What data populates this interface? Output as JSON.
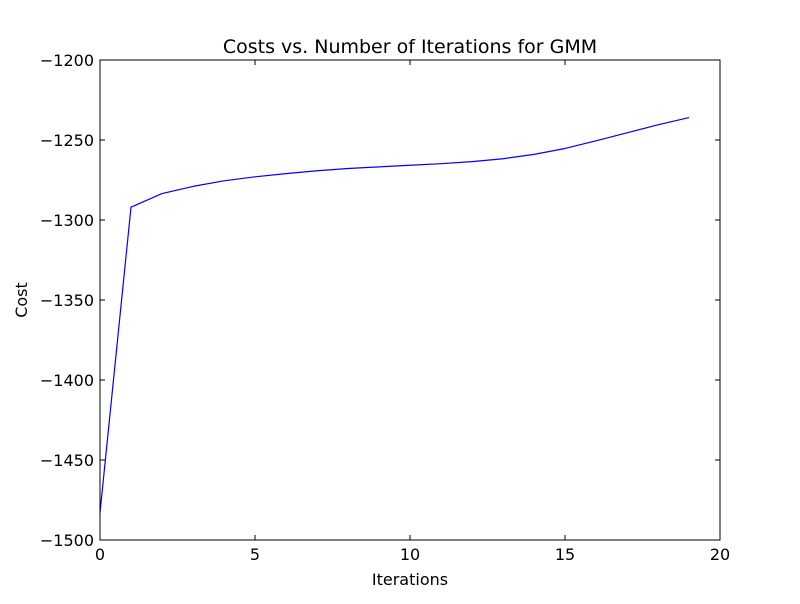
{
  "chart_data": {
    "type": "line",
    "title": "Costs vs. Number of Iterations for GMM",
    "xlabel": "Iterations",
    "ylabel": "Cost",
    "xlim": [
      0,
      20
    ],
    "ylim": [
      -1500,
      -1200
    ],
    "xticks": [
      "0",
      "5",
      "10",
      "15",
      "20"
    ],
    "yticks": [
      "−1500",
      "−1450",
      "−1400",
      "−1350",
      "−1300",
      "−1250",
      "−1200"
    ],
    "grid": false,
    "series": [
      {
        "color": "#0000ff",
        "x": [
          0,
          1,
          2,
          3,
          4,
          5,
          6,
          7,
          8,
          9,
          10,
          11,
          12,
          13,
          14,
          15,
          16,
          17,
          18,
          19
        ],
        "y": [
          -1483,
          -1292,
          -1283.5,
          -1279,
          -1275.5,
          -1273,
          -1271,
          -1269.2,
          -1267.8,
          -1266.8,
          -1265.8,
          -1264.8,
          -1263.5,
          -1261.7,
          -1259,
          -1255.3,
          -1250.5,
          -1245.5,
          -1240.5,
          -1236
        ]
      }
    ]
  }
}
